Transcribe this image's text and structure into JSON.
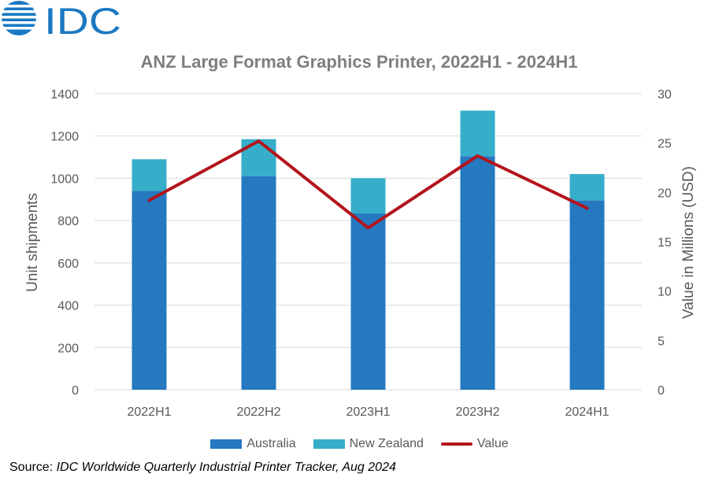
{
  "brand": {
    "logo_text": "IDC"
  },
  "colors": {
    "australia": "#2579c0",
    "new_zealand": "#36aec9",
    "value": "#b3141c",
    "grid": "#d9d9d9",
    "text": "#595959",
    "title": "#7f7f7f",
    "logo": "#1a78c2"
  },
  "chart_data": {
    "type": "bar",
    "stacked": true,
    "title": "ANZ Large Format Graphics Printer, 2022H1 - 2024H1",
    "categories": [
      "2022H1",
      "2022H2",
      "2023H1",
      "2023H2",
      "2024H1"
    ],
    "series": [
      {
        "name": "Australia",
        "type": "bar",
        "axis": "left",
        "values": [
          940,
          1010,
          835,
          1105,
          895
        ]
      },
      {
        "name": "New Zealand",
        "type": "bar",
        "axis": "left",
        "values": [
          150,
          175,
          165,
          215,
          125
        ]
      },
      {
        "name": "Value",
        "type": "line",
        "axis": "right",
        "values": [
          19.2,
          25.2,
          16.4,
          23.7,
          18.4
        ]
      }
    ],
    "ylabel": "Unit shipments",
    "ylim": [
      0,
      1400
    ],
    "yticks": [
      0,
      200,
      400,
      600,
      800,
      1000,
      1200,
      1400
    ],
    "y2label": "Value in Millions (USD)",
    "y2lim": [
      0,
      30
    ],
    "y2ticks": [
      0,
      5,
      10,
      15,
      20,
      25,
      30
    ],
    "grid": true,
    "legend_position": "bottom"
  },
  "source": {
    "prefix": "Source: ",
    "text": "IDC Worldwide Quarterly Industrial Printer Tracker, Aug 2024"
  }
}
